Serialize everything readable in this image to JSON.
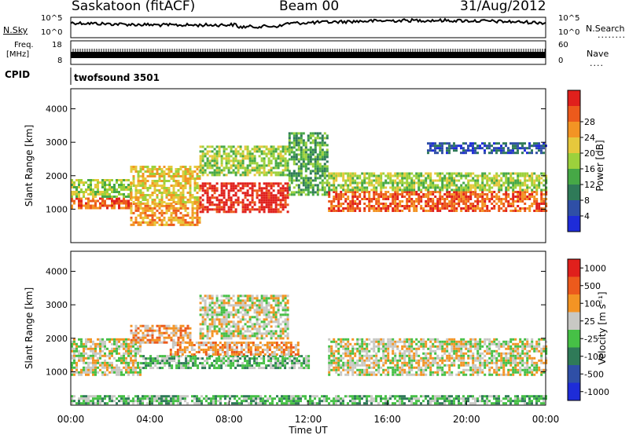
{
  "header": {
    "title": "Saskatoon (fitACF)",
    "beam": "Beam 00",
    "date": "31/Aug/2012"
  },
  "top_panels": {
    "nsky_label": "N.Sky",
    "nsearch_label": "N.Search",
    "nsearch_dots": "........",
    "nsky_ticks": [
      "10^5",
      "10^0"
    ],
    "nsearch_ticks": [
      "10^5",
      "10^0"
    ],
    "freq_label": "Freq.",
    "freq_unit": "[MHz]",
    "freq_ticks": [
      "18",
      "8"
    ],
    "nave_label": "Nave",
    "nave_dots": "....",
    "nave_ticks": [
      "60",
      "0"
    ],
    "cpid_label": "CPID",
    "cpid_value": "twofsound 3501"
  },
  "chart_data": [
    {
      "type": "heatmap",
      "panel": "power",
      "ylabel": "Slant Range [km]",
      "ylim": [
        0,
        4600
      ],
      "yticks": [
        "1000",
        "2000",
        "3000",
        "4000"
      ],
      "xlim_hours": [
        0,
        24
      ],
      "colorbar": {
        "label": "Power [dB]",
        "ticks": [
          "4",
          "8",
          "12",
          "16",
          "20",
          "24",
          "28"
        ],
        "colors": [
          "#1e2cd8",
          "#2f4fa6",
          "#2f7a58",
          "#46a846",
          "#9cd13c",
          "#e6c83c",
          "#f39424",
          "#ec5a1c",
          "#e0201c"
        ]
      },
      "bands": [
        {
          "t0": 0.0,
          "t1": 3.0,
          "r0": 1000,
          "r1": 1350,
          "level": 7
        },
        {
          "t0": 0.0,
          "t1": 3.0,
          "r0": 1350,
          "r1": 1900,
          "level": 4
        },
        {
          "t0": 3.0,
          "t1": 6.5,
          "r0": 550,
          "r1": 1200,
          "level": 6
        },
        {
          "t0": 3.0,
          "t1": 6.5,
          "r0": 1200,
          "r1": 2300,
          "level": 5
        },
        {
          "t0": 6.5,
          "t1": 11.0,
          "r0": 950,
          "r1": 1800,
          "level": 8
        },
        {
          "t0": 6.5,
          "t1": 11.0,
          "r0": 2000,
          "r1": 2900,
          "level": 4
        },
        {
          "t0": 11.0,
          "t1": 13.0,
          "r0": 1400,
          "r1": 3300,
          "level": 3
        },
        {
          "t0": 13.0,
          "t1": 24.0,
          "r0": 950,
          "r1": 1550,
          "level": 7
        },
        {
          "t0": 13.0,
          "t1": 24.0,
          "r0": 1550,
          "r1": 2100,
          "level": 4
        },
        {
          "t0": 18.0,
          "t1": 24.0,
          "r0": 2700,
          "r1": 3000,
          "level": 1
        }
      ]
    },
    {
      "type": "heatmap",
      "panel": "velocity",
      "ylabel": "Slant Range [km]",
      "xlabel": "Time UT",
      "ylim": [
        0,
        4600
      ],
      "yticks": [
        "1000",
        "2000",
        "3000",
        "4000"
      ],
      "xticks": [
        "00:00",
        "04:00",
        "08:00",
        "12:00",
        "16:00",
        "20:00",
        "00:00"
      ],
      "xlim_hours": [
        0,
        24
      ],
      "colorbar": {
        "label": "Velocity [m s⁻¹]",
        "ticks": [
          "1000",
          "500",
          "100",
          "25",
          "-25",
          "-100",
          "-500",
          "-1000"
        ],
        "colors": [
          "#1e2cd8",
          "#2f4fa6",
          "#2f7a58",
          "#46c046",
          "#c8c8c4",
          "#f39424",
          "#ec5a1c",
          "#e0201c"
        ]
      },
      "bands": [
        {
          "t0": 0.0,
          "t1": 3.5,
          "r0": 900,
          "r1": 2000,
          "level": 4
        },
        {
          "t0": 3.0,
          "t1": 6.0,
          "r0": 1900,
          "r1": 2400,
          "level": 5
        },
        {
          "t0": 3.5,
          "t1": 12.0,
          "r0": 1100,
          "r1": 1500,
          "level": 3
        },
        {
          "t0": 5.0,
          "t1": 11.5,
          "r0": 1500,
          "r1": 1900,
          "level": 5
        },
        {
          "t0": 6.5,
          "t1": 11.0,
          "r0": 2000,
          "r1": 3300,
          "level": 4
        },
        {
          "t0": 13.0,
          "t1": 24.0,
          "r0": 900,
          "r1": 2000,
          "level": 4
        },
        {
          "t0": 0.0,
          "t1": 24.0,
          "r0": 50,
          "r1": 300,
          "level": 3
        }
      ]
    }
  ]
}
